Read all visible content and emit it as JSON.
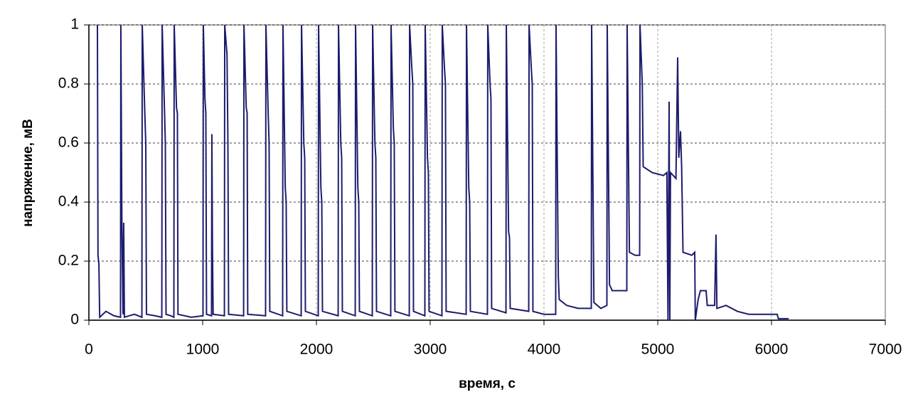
{
  "chart_data": {
    "type": "line",
    "xlabel": "время, с",
    "ylabel": "напряжение, мВ",
    "xlim": [
      0,
      7000
    ],
    "xticks": [
      0,
      1000,
      2000,
      3000,
      4000,
      5000,
      6000,
      7000
    ],
    "ylim": [
      0,
      1
    ],
    "yticks": [
      0,
      0.2,
      0.4,
      0.6,
      0.8,
      1
    ],
    "grid": true,
    "x": [
      75,
      80,
      88,
      95,
      150,
      220,
      278,
      281,
      290,
      300,
      306,
      312,
      400,
      466,
      469,
      490,
      500,
      506,
      580,
      641,
      644,
      664,
      672,
      678,
      720,
      747,
      750,
      770,
      778,
      783,
      900,
      1003,
      1006,
      1020,
      1028,
      1034,
      1078,
      1081,
      1086,
      1092,
      1191,
      1194,
      1214,
      1222,
      1228,
      1360,
      1363,
      1383,
      1391,
      1396,
      1553,
      1556,
      1576,
      1584,
      1590,
      1703,
      1706,
      1726,
      1734,
      1740,
      1866,
      1869,
      1889,
      1897,
      1903,
      2016,
      2019,
      2039,
      2047,
      2053,
      2191,
      2194,
      2214,
      2222,
      2228,
      2341,
      2344,
      2364,
      2372,
      2378,
      2491,
      2494,
      2514,
      2522,
      2528,
      2653,
      2656,
      2676,
      2684,
      2690,
      2816,
      2819,
      2839,
      2847,
      2853,
      2953,
      2956,
      2976,
      2984,
      2990,
      3103,
      3106,
      3126,
      3134,
      3140,
      3316,
      3319,
      3339,
      3347,
      3353,
      3503,
      3506,
      3526,
      3534,
      3540,
      3666,
      3669,
      3689,
      3697,
      3703,
      3866,
      3869,
      3889,
      3897,
      3903,
      4000,
      4103,
      4106,
      4126,
      4134,
      4200,
      4300,
      4416,
      4419,
      4439,
      4500,
      4553,
      4556,
      4576,
      4600,
      4728,
      4731,
      4751,
      4800,
      4841,
      4844,
      4864,
      4872,
      4950,
      5050,
      5080,
      5090,
      5100,
      5106,
      5112,
      5160,
      5175,
      5185,
      5200,
      5210,
      5222,
      5300,
      5325,
      5330,
      5355,
      5375,
      5425,
      5435,
      5500,
      5512,
      5520,
      5600,
      5700,
      5800,
      5950,
      6050,
      6060,
      6150
    ],
    "series": [
      {
        "color": "#1c1c6e",
        "values": [
          1,
          0.22,
          0.19,
          0.01,
          0.03,
          0.015,
          0.01,
          1,
          0.33,
          0.02,
          0.33,
          0.01,
          0.02,
          0.01,
          1,
          0.72,
          0.6,
          0.02,
          0.015,
          0.01,
          1,
          0.72,
          0.6,
          0.02,
          0.015,
          0.01,
          1,
          0.72,
          0.7,
          0.02,
          0.01,
          0.015,
          1,
          0.75,
          0.7,
          0.02,
          0.015,
          0.63,
          0.25,
          0.02,
          0.015,
          1,
          0.9,
          0.6,
          0.02,
          0.015,
          1,
          0.72,
          0.7,
          0.02,
          0.015,
          1,
          0.7,
          0.6,
          0.03,
          0.015,
          1,
          0.45,
          0.4,
          0.03,
          0.015,
          1,
          0.6,
          0.55,
          0.03,
          0.015,
          1,
          0.45,
          0.4,
          0.03,
          0.015,
          1,
          0.6,
          0.55,
          0.03,
          0.015,
          1,
          0.45,
          0.4,
          0.03,
          0.015,
          1,
          0.6,
          0.55,
          0.03,
          0.015,
          1,
          0.65,
          0.6,
          0.03,
          0.015,
          1,
          0.85,
          0.8,
          0.03,
          0.015,
          1,
          0.55,
          0.5,
          0.03,
          0.015,
          1,
          0.85,
          0.8,
          0.03,
          0.02,
          1,
          0.45,
          0.4,
          0.03,
          0.02,
          1,
          0.8,
          0.75,
          0.04,
          0.025,
          1,
          0.3,
          0.28,
          0.04,
          0.03,
          1,
          0.85,
          0.8,
          0.03,
          0.02,
          0.02,
          1,
          0.15,
          0.07,
          0.05,
          0.04,
          0.04,
          1,
          0.06,
          0.04,
          0.05,
          1,
          0.12,
          0.1,
          0.1,
          1,
          0.23,
          0.22,
          0.22,
          1,
          0.8,
          0.52,
          0.5,
          0.49,
          0.5,
          0,
          0.74,
          0,
          0.5,
          0.48,
          0.89,
          0.55,
          0.64,
          0.52,
          0.23,
          0.22,
          0.23,
          0,
          0.07,
          0.1,
          0.1,
          0.05,
          0.05,
          0.29,
          0.04,
          0.05,
          0.03,
          0.02,
          0.02,
          0.02,
          0.005,
          0.005
        ]
      }
    ]
  }
}
